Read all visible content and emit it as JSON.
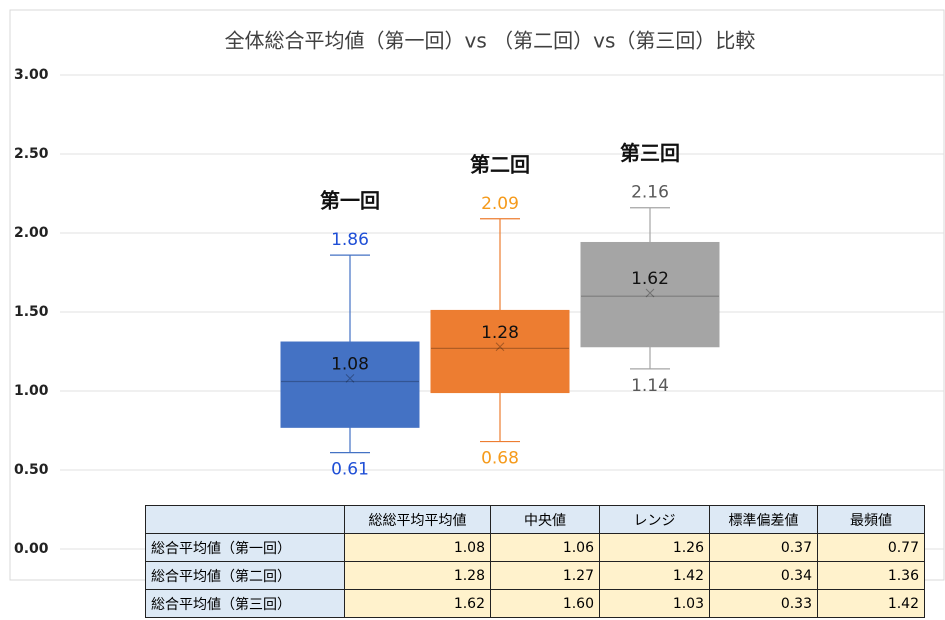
{
  "chart_data": {
    "type": "box",
    "title": "全体総合平均値（第一回）vs （第二回）vs（第三回）比較",
    "categories": [
      "第一回",
      "第二回",
      "第三回"
    ],
    "colors": [
      "#4472c4",
      "#ed7d31",
      "#a5a5a5"
    ],
    "label_colors": [
      "#1f4fd6",
      "#f59a1b",
      "#595959"
    ],
    "min": [
      0.61,
      0.68,
      1.14
    ],
    "q1": [
      0.77,
      0.99,
      1.28
    ],
    "median": [
      1.06,
      1.27,
      1.6
    ],
    "q3": [
      1.31,
      1.51,
      1.94
    ],
    "max": [
      1.86,
      2.09,
      2.16
    ],
    "mean": [
      1.08,
      1.28,
      1.62
    ],
    "ylim": [
      0,
      3
    ],
    "yticks": [
      {
        "value": 0,
        "label": "0.00"
      },
      {
        "value": 0.5,
        "label": "0.50"
      },
      {
        "value": 1,
        "label": "1.00"
      },
      {
        "value": 1.5,
        "label": "1.50"
      },
      {
        "value": 2,
        "label": "2.00"
      },
      {
        "value": 2.5,
        "label": "2.50"
      },
      {
        "value": 3,
        "label": "3.00"
      }
    ],
    "grid": true
  },
  "table": {
    "header": [
      "",
      "総総平均平均値",
      "中央値",
      "レンジ",
      "標準偏差値",
      "最頻値"
    ],
    "rows": [
      [
        "総合平均値（第一回）",
        "1.08",
        "1.06",
        "1.26",
        "0.37",
        "0.77"
      ],
      [
        "総合平均値（第二回）",
        "1.28",
        "1.27",
        "1.42",
        "0.34",
        "1.36"
      ],
      [
        "総合平均値（第三回）",
        "1.62",
        "1.60",
        "1.03",
        "0.33",
        "1.42"
      ]
    ]
  }
}
